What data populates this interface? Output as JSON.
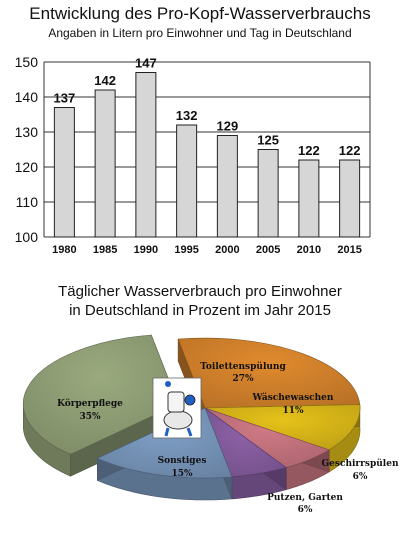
{
  "chart_data": [
    {
      "type": "bar",
      "title": "Entwicklung des Pro-Kopf-Wasserverbrauchs",
      "subtitle": "Angaben in Litern pro Einwohner und Tag in Deutschland",
      "categories": [
        "1980",
        "1985",
        "1990",
        "1995",
        "2000",
        "2005",
        "2010",
        "2015"
      ],
      "values": [
        137,
        142,
        147,
        132,
        129,
        125,
        122,
        122
      ],
      "ylim": [
        100,
        150
      ],
      "yticks": [
        100,
        110,
        120,
        130,
        140,
        150
      ],
      "grid": true,
      "colors": {
        "bar": "#d6d6d6",
        "bar_stroke": "#222222",
        "grid": "#333333"
      }
    },
    {
      "type": "pie",
      "title": "Täglicher Wasserverbrauch pro Einwohner",
      "subtitle": "in Deutschland in Prozent im Jahr 2015",
      "slices": [
        {
          "label": "Toilettenspülung",
          "value": 27,
          "value_label": "27%",
          "color": "#e08a2e"
        },
        {
          "label": "Wäschewaschen",
          "value": 11,
          "value_label": "11%",
          "color": "#e6c21a"
        },
        {
          "label": "Geschirrspülen",
          "value": 6,
          "value_label": "6%",
          "color": "#d07a86"
        },
        {
          "label": "Putzen, Garten",
          "value": 6,
          "value_label": "6%",
          "color": "#8e62a8"
        },
        {
          "label": "Sonstiges",
          "value": 15,
          "value_label": "15%",
          "color": "#7f9fc6"
        },
        {
          "label": "Körperpflege",
          "value": 35,
          "value_label": "35%",
          "color": "#9aaa7e"
        }
      ]
    }
  ]
}
